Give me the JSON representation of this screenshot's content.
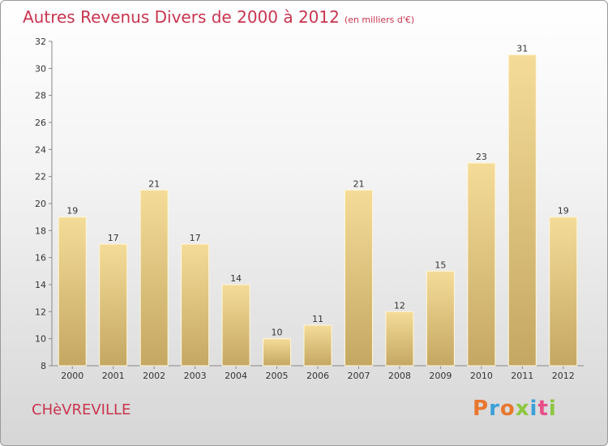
{
  "header": {
    "title": "Autres Revenus Divers de 2000 à 2012",
    "subtitle": "(en milliers d'€)"
  },
  "footer": {
    "place": "CHèVREVILLE",
    "logo": "Proxiti",
    "logo_colors": [
      "#e8772e",
      "#3aa0d8",
      "#e8772e",
      "#8cc63f",
      "#3aa0d8",
      "#e84e8a",
      "#8cc63f"
    ]
  },
  "chart_data": {
    "type": "bar",
    "categories": [
      "2000",
      "2001",
      "2002",
      "2003",
      "2004",
      "2005",
      "2006",
      "2007",
      "2008",
      "2009",
      "2010",
      "2011",
      "2012"
    ],
    "values": [
      19,
      17,
      21,
      17,
      14,
      10,
      11,
      21,
      12,
      15,
      23,
      31,
      19
    ],
    "ylim": [
      8,
      32
    ],
    "yticks": [
      8,
      10,
      12,
      14,
      16,
      18,
      20,
      22,
      24,
      26,
      28,
      30,
      32
    ],
    "bar_colors": [
      "#f4dc98",
      "#c4a762"
    ],
    "grid": false,
    "data_labels": true
  }
}
